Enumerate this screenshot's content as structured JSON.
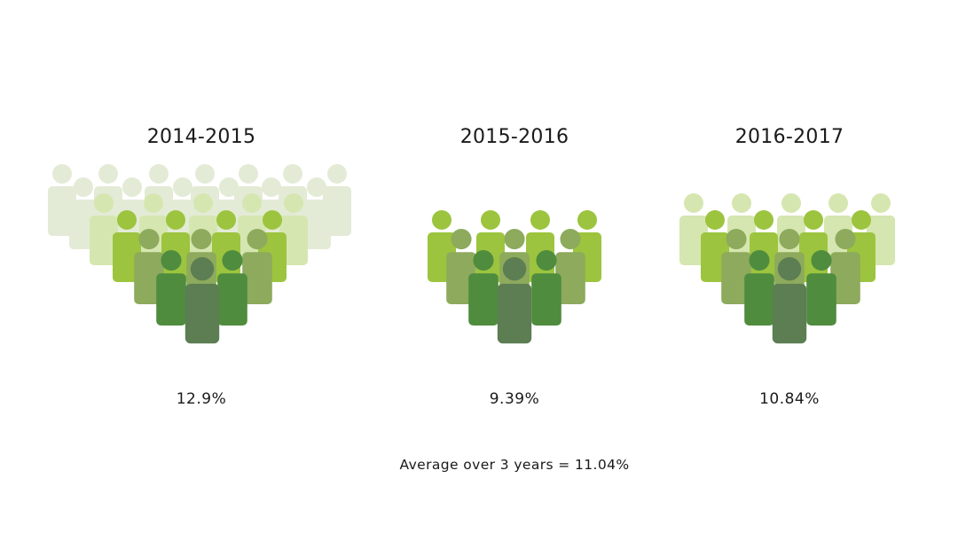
{
  "chart_data": {
    "type": "pictogram",
    "categories": [
      "2014-2015",
      "2015-2016",
      "2016-2017"
    ],
    "values": [
      12.9,
      9.39,
      10.84
    ],
    "value_labels": [
      "12.9%",
      "9.39%",
      "10.84%"
    ],
    "unit": "%",
    "average_label": "Average over 3 years = 11.04%",
    "average_value": 11.04,
    "palette": {
      "row1": "#e3ebd6",
      "row2": "#d6e6b0",
      "row3": "#c7e08f",
      "row4": "#9cc43e",
      "row5": "#8daa5d",
      "row6": "#4f8c3e",
      "row7": "#5c7e52"
    }
  }
}
